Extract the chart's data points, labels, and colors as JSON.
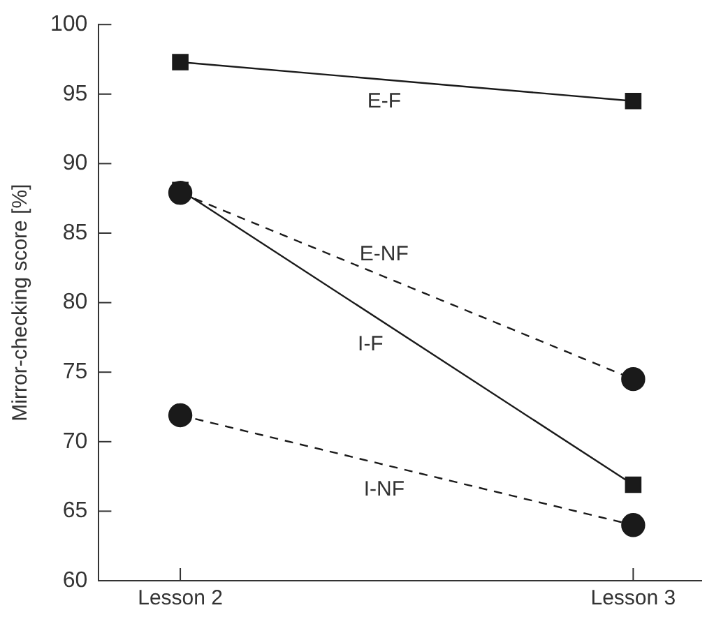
{
  "chart_data": {
    "type": "line",
    "ylabel": "Mirror-checking score [%]",
    "categories": [
      "Lesson 2",
      "Lesson 3"
    ],
    "ylim": [
      60,
      100
    ],
    "yticks": [
      60,
      65,
      70,
      75,
      80,
      85,
      90,
      95,
      100
    ],
    "grid": false,
    "legend": false,
    "series": [
      {
        "name": "E-F",
        "color": "#1a1a1a",
        "marker": "square",
        "line_style": "solid",
        "values": [
          97.3,
          94.5
        ]
      },
      {
        "name": "E-NF",
        "color": "#1a1a1a",
        "marker": "circle",
        "line_style": "dashed",
        "values": [
          87.9,
          74.5
        ]
      },
      {
        "name": "I-F",
        "color": "#1a1a1a",
        "marker": "square",
        "line_style": "solid",
        "values": [
          88.1,
          66.9
        ]
      },
      {
        "name": "I-NF",
        "color": "#1a1a1a",
        "marker": "circle",
        "line_style": "dashed",
        "values": [
          71.9,
          64.0
        ]
      }
    ]
  }
}
